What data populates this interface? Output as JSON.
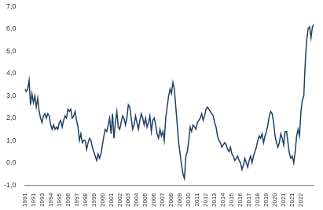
{
  "chart_data": {
    "type": "line",
    "categories": [
      "1991",
      null,
      null,
      null,
      null,
      null,
      "1991",
      null,
      null,
      null,
      null,
      null,
      "1993",
      null,
      null,
      null,
      null,
      null,
      "1994",
      null,
      null,
      null,
      null,
      null,
      "1995",
      null,
      null,
      null,
      null,
      null,
      "1996",
      null,
      null,
      null,
      null,
      null,
      "1997",
      null,
      null,
      null,
      null,
      null,
      "1998",
      null,
      null,
      null,
      null,
      null,
      "1999",
      null,
      null,
      null,
      null,
      null,
      "2000",
      null,
      null,
      null,
      null,
      null,
      "2001",
      null,
      null,
      null,
      null,
      null,
      "2002",
      null,
      null,
      null,
      null,
      null,
      "2003",
      null,
      null,
      null,
      null,
      null,
      "2004",
      null,
      null,
      null,
      null,
      null,
      "2005",
      null,
      null,
      null,
      null,
      null,
      "2006",
      null,
      null,
      null,
      null,
      null,
      "2007",
      null,
      null,
      null,
      null,
      null,
      "2008",
      null,
      null,
      null,
      null,
      null,
      "2009",
      null,
      null,
      null,
      null,
      null,
      "2010",
      null,
      null,
      null,
      null,
      null,
      "2011",
      null,
      null,
      null,
      null,
      null,
      "2012",
      null,
      null,
      null,
      null,
      null,
      "2013",
      null,
      null,
      null,
      null,
      null,
      "2014",
      null,
      null,
      null,
      null,
      null,
      "2015",
      null,
      null,
      null,
      null,
      null,
      "2016",
      null,
      null,
      null,
      null,
      null,
      "2017",
      null,
      null,
      null,
      null,
      null,
      "2018",
      null,
      null,
      null,
      null,
      null,
      "2019",
      null,
      null,
      null,
      null,
      null,
      "2020",
      null,
      null,
      null,
      null,
      null,
      "2021",
      null,
      null,
      null,
      null,
      null,
      "2021",
      null,
      null,
      null,
      null,
      null,
      "2022",
      null,
      null,
      null,
      null,
      null,
      null,
      null,
      null,
      null
    ],
    "values": [
      3.3,
      3.2,
      3.3,
      3.7,
      2.6,
      3.1,
      2.7,
      3.0,
      2.5,
      2.9,
      2.3,
      2.0,
      1.8,
      2.1,
      2.2,
      2.0,
      2.2,
      2.1,
      1.7,
      1.5,
      1.7,
      1.5,
      1.6,
      1.5,
      1.8,
      1.9,
      1.6,
      1.9,
      2.1,
      2.0,
      2.4,
      2.3,
      2.4,
      2.0,
      2.1,
      2.3,
      1.9,
      1.6,
      1.0,
      1.3,
      0.9,
      1.0,
      1.0,
      0.6,
      0.9,
      1.1,
      1.0,
      0.7,
      0.5,
      0.3,
      0.1,
      0.4,
      0.2,
      0.4,
      0.8,
      1.2,
      1.5,
      1.4,
      1.7,
      2.0,
      1.3,
      2.2,
      1.1,
      1.8,
      2.3,
      1.6,
      1.5,
      1.8,
      2.1,
      2.0,
      1.7,
      2.0,
      2.6,
      2.5,
      2.0,
      1.5,
      1.7,
      2.1,
      1.8,
      1.5,
      1.9,
      2.2,
      2.0,
      1.7,
      2.0,
      1.6,
      1.8,
      2.1,
      1.4,
      1.9,
      2.0,
      1.7,
      1.3,
      1.1,
      1.5,
      1.2,
      1.4,
      1.0,
      2.0,
      2.5,
      3.0,
      3.3,
      3.1,
      3.6,
      3.3,
      2.5,
      1.7,
      0.9,
      0.4,
      -0.1,
      -0.5,
      -0.7,
      0.3,
      0.5,
      1.0,
      1.6,
      1.4,
      1.7,
      1.6,
      1.5,
      1.8,
      1.9,
      2.0,
      2.2,
      1.9,
      2.1,
      2.4,
      2.5,
      2.4,
      2.3,
      2.2,
      2.1,
      1.8,
      1.6,
      1.2,
      1.0,
      0.9,
      0.7,
      0.8,
      0.9,
      0.8,
      0.6,
      0.5,
      0.7,
      0.4,
      0.3,
      0.1,
      0.2,
      0.3,
      0.1,
      0.0,
      -0.3,
      -0.1,
      0.2,
      0.0,
      -0.2,
      0.1,
      0.3,
      0.0,
      0.3,
      0.5,
      0.7,
      1.0,
      1.2,
      1.1,
      1.3,
      0.9,
      1.2,
      1.4,
      1.7,
      2.1,
      2.3,
      2.2,
      1.8,
      1.2,
      0.9,
      0.7,
      0.9,
      1.3,
      1.1,
      0.8,
      1.4,
      1.4,
      0.9,
      0.4,
      0.2,
      0.3,
      0.0,
      0.5,
      1.2,
      1.5,
      1.2,
      2.3,
      2.8,
      3.0,
      4.5,
      5.5,
      6.0,
      6.1,
      5.6,
      6.1,
      6.2
    ],
    "color": "#1f3f66",
    "ylim": [
      -1,
      7
    ],
    "yticks": [
      {
        "value": -1,
        "label": "-1,0"
      },
      {
        "value": 0,
        "label": "0,0"
      },
      {
        "value": 1,
        "label": "1,0"
      },
      {
        "value": 2,
        "label": "2,0"
      },
      {
        "value": 3,
        "label": "3,0"
      },
      {
        "value": 4,
        "label": "4,0"
      },
      {
        "value": 5,
        "label": "5,0"
      },
      {
        "value": 6,
        "label": "6,0"
      },
      {
        "value": 7,
        "label": "7,0"
      }
    ],
    "grid": false
  }
}
